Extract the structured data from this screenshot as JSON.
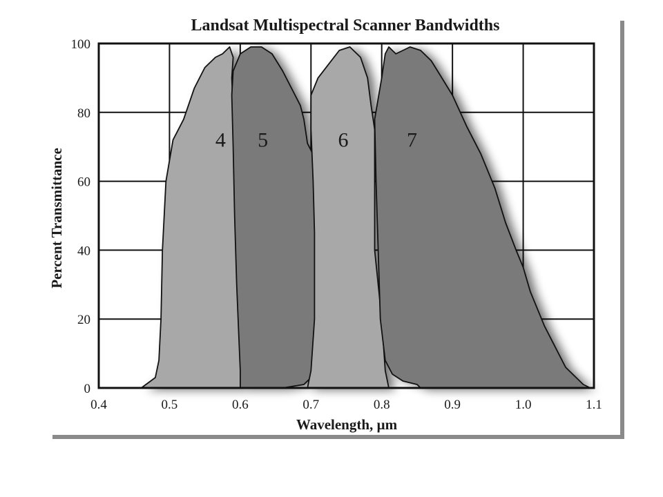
{
  "chart_data": {
    "type": "area",
    "title": "Landsat Multispectral Scanner Bandwidths",
    "xlabel": "Wavelength, µm",
    "ylabel": "Percent Transmittance",
    "xlim": [
      0.4,
      1.1
    ],
    "ylim": [
      0,
      100
    ],
    "x_ticks": [
      "0.4",
      "0.5",
      "0.6",
      "0.7",
      "0.8",
      "0.9",
      "1.0",
      "1.1"
    ],
    "y_ticks": [
      "0",
      "20",
      "40",
      "60",
      "80",
      "100"
    ],
    "grid": true,
    "legend": "none",
    "series": [
      {
        "label": "4",
        "color": "#a8a8a8",
        "points": [
          [
            0.46,
            0
          ],
          [
            0.48,
            3
          ],
          [
            0.485,
            8
          ],
          [
            0.488,
            20
          ],
          [
            0.49,
            40
          ],
          [
            0.495,
            60
          ],
          [
            0.505,
            72
          ],
          [
            0.52,
            78
          ],
          [
            0.535,
            87
          ],
          [
            0.55,
            93
          ],
          [
            0.565,
            96
          ],
          [
            0.575,
            97
          ],
          [
            0.585,
            99
          ],
          [
            0.59,
            96
          ],
          [
            0.588,
            90
          ],
          [
            0.59,
            80
          ],
          [
            0.592,
            60
          ],
          [
            0.595,
            40
          ],
          [
            0.598,
            20
          ],
          [
            0.6,
            10
          ],
          [
            0.6,
            0
          ]
        ]
      },
      {
        "label": "5",
        "color": "#7a7a7a",
        "points": [
          [
            0.6,
            0
          ],
          [
            0.6,
            5
          ],
          [
            0.598,
            15
          ],
          [
            0.595,
            30
          ],
          [
            0.592,
            50
          ],
          [
            0.59,
            70
          ],
          [
            0.588,
            85
          ],
          [
            0.59,
            92
          ],
          [
            0.6,
            97
          ],
          [
            0.615,
            99
          ],
          [
            0.63,
            99
          ],
          [
            0.645,
            97
          ],
          [
            0.66,
            92
          ],
          [
            0.675,
            86
          ],
          [
            0.685,
            82
          ],
          [
            0.69,
            78
          ],
          [
            0.695,
            71
          ],
          [
            0.705,
            67
          ],
          [
            0.71,
            60
          ],
          [
            0.712,
            40
          ],
          [
            0.71,
            20
          ],
          [
            0.705,
            8
          ],
          [
            0.7,
            3
          ],
          [
            0.69,
            1
          ],
          [
            0.66,
            0
          ],
          [
            0.64,
            0
          ]
        ]
      },
      {
        "label": "6",
        "color": "#a8a8a8",
        "points": [
          [
            0.695,
            0
          ],
          [
            0.7,
            5
          ],
          [
            0.705,
            20
          ],
          [
            0.705,
            45
          ],
          [
            0.703,
            60
          ],
          [
            0.7,
            75
          ],
          [
            0.7,
            85
          ],
          [
            0.71,
            90
          ],
          [
            0.725,
            94
          ],
          [
            0.74,
            98
          ],
          [
            0.755,
            99
          ],
          [
            0.77,
            96
          ],
          [
            0.78,
            90
          ],
          [
            0.785,
            82
          ],
          [
            0.79,
            75
          ],
          [
            0.79,
            60
          ],
          [
            0.79,
            40
          ],
          [
            0.8,
            20
          ],
          [
            0.805,
            5
          ],
          [
            0.81,
            0
          ]
        ]
      },
      {
        "label": "7",
        "color": "#7a7a7a",
        "points": [
          [
            0.855,
            0
          ],
          [
            0.85,
            1
          ],
          [
            0.83,
            2
          ],
          [
            0.815,
            4
          ],
          [
            0.805,
            8
          ],
          [
            0.798,
            20
          ],
          [
            0.795,
            40
          ],
          [
            0.792,
            60
          ],
          [
            0.79,
            78
          ],
          [
            0.8,
            90
          ],
          [
            0.805,
            97
          ],
          [
            0.81,
            99
          ],
          [
            0.82,
            97
          ],
          [
            0.84,
            99
          ],
          [
            0.855,
            98
          ],
          [
            0.87,
            95
          ],
          [
            0.885,
            90
          ],
          [
            0.9,
            85
          ],
          [
            0.92,
            76
          ],
          [
            0.94,
            68
          ],
          [
            0.96,
            58
          ],
          [
            0.975,
            48
          ],
          [
            0.99,
            40
          ],
          [
            1.0,
            35
          ],
          [
            1.01,
            28
          ],
          [
            1.03,
            18
          ],
          [
            1.06,
            6
          ],
          [
            1.085,
            1
          ],
          [
            1.095,
            0
          ]
        ]
      }
    ]
  }
}
